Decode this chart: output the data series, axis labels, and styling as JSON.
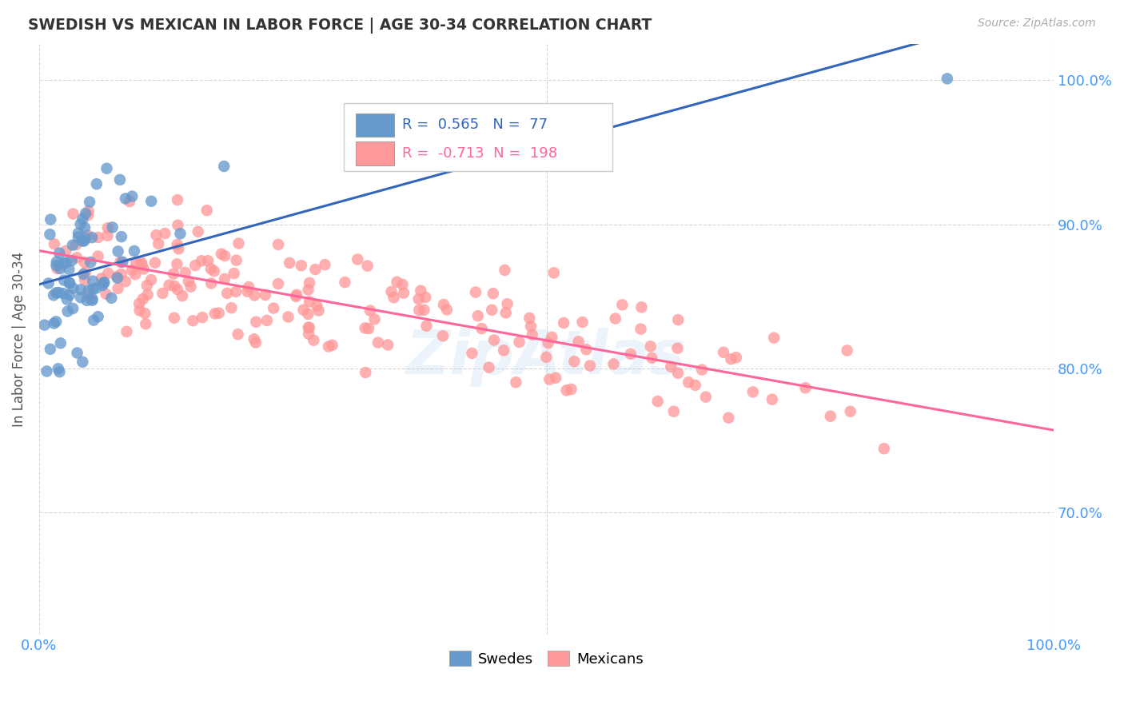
{
  "title": "SWEDISH VS MEXICAN IN LABOR FORCE | AGE 30-34 CORRELATION CHART",
  "source": "Source: ZipAtlas.com",
  "ylabel": "In Labor Force | Age 30-34",
  "xlim": [
    0.0,
    1.0
  ],
  "ylim": [
    0.615,
    1.025
  ],
  "y_ticks": [
    0.7,
    0.8,
    0.9,
    1.0
  ],
  "y_tick_labels": [
    "70.0%",
    "80.0%",
    "90.0%",
    "100.0%"
  ],
  "swedes_R": 0.565,
  "swedes_N": 77,
  "mexicans_R": -0.713,
  "mexicans_N": 198,
  "swedes_color": "#6699CC",
  "mexicans_color": "#FF9999",
  "trend_blue": "#3366BB",
  "trend_pink": "#FF6699",
  "background_color": "#ffffff",
  "grid_color": "#cccccc",
  "title_color": "#333333",
  "axis_label_color": "#4499FF",
  "watermark_color": "#aaccee",
  "seed_sw": 42,
  "seed_mx": 99
}
